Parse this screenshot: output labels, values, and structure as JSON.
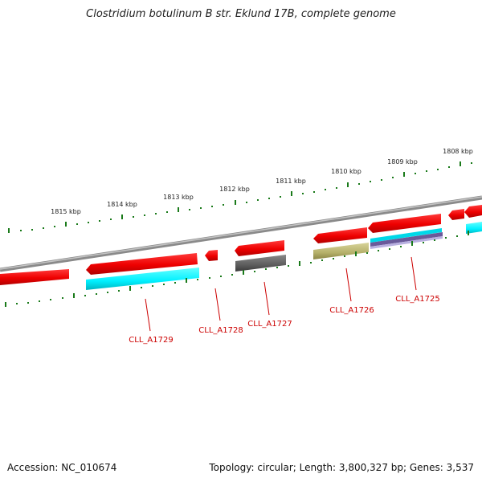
{
  "title": "Clostridium botulinum B str. Eklund 17B, complete genome",
  "accession": "Accession: NC_010674",
  "topology": "Topology: circular; Length: 3,800,327 bp; Genes: 3,537",
  "kbp_labels": [
    "1815 kbp",
    "1814 kbp",
    "1813 kbp",
    "1812 kbp",
    "1811 kbp",
    "1810 kbp",
    "1809 kbp",
    "1808 kbp"
  ],
  "gene_labels": [
    "CLL_A1729",
    "CLL_A1728",
    "CLL_A1727",
    "CLL_A1726",
    "CLL_A1725"
  ],
  "colors": {
    "backbone": "#8a8a8a",
    "gene": "#ff0000",
    "tick": "#1a7a1a",
    "label": "#cc0000",
    "cyan": "#00f2ff",
    "gray": "#666666",
    "olive": "#b5b06a",
    "purple": "#6a5a9a"
  }
}
